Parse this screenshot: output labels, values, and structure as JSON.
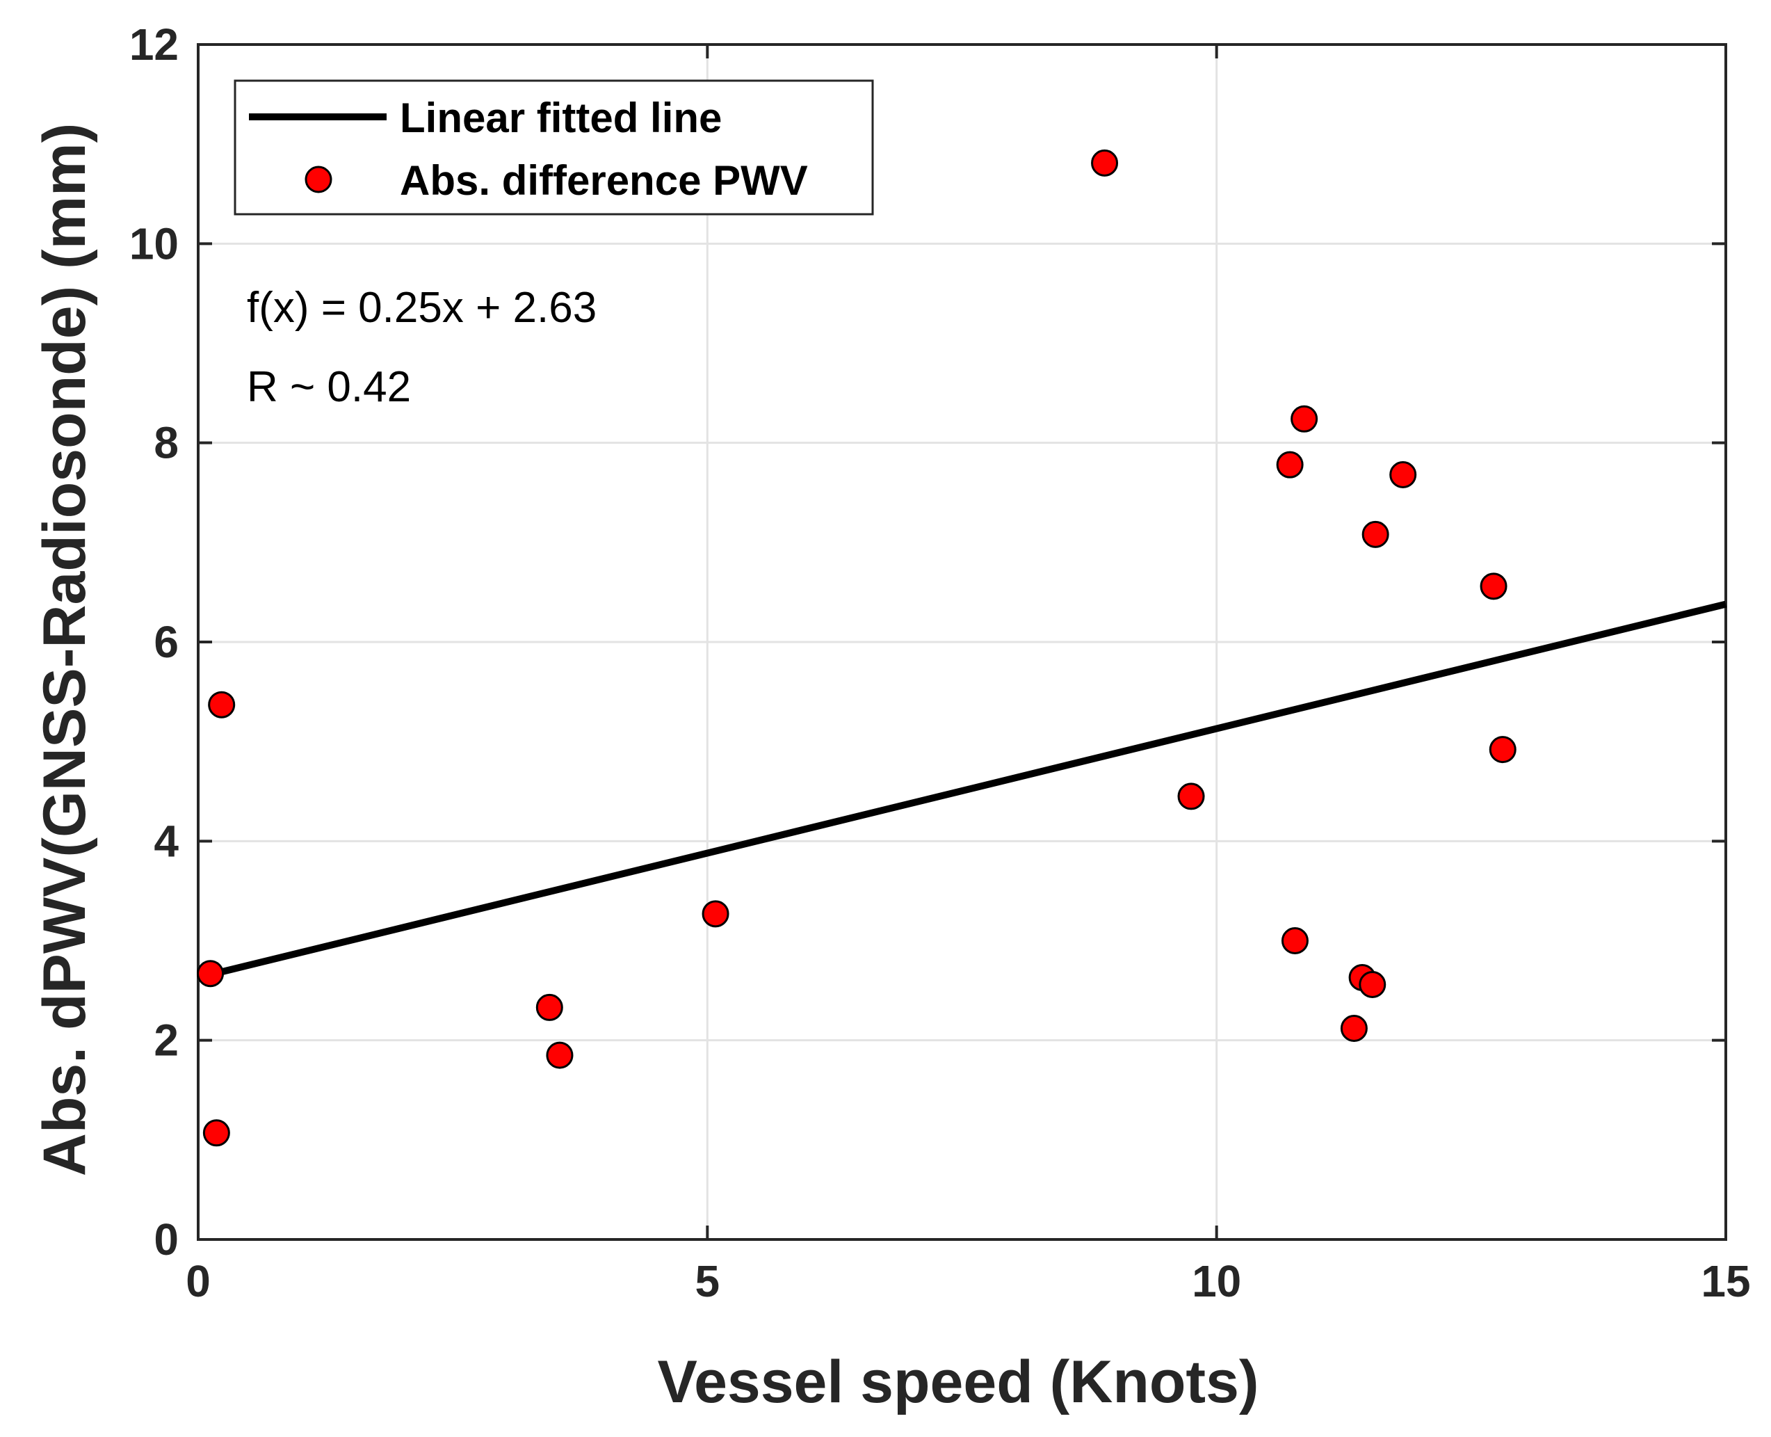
{
  "chart_data": {
    "type": "scatter",
    "title": "",
    "xlabel": "Vessel speed (Knots)",
    "ylabel": "Abs. dPWV(GNSS-Radiosonde) (mm)",
    "xlim": [
      0,
      15
    ],
    "ylim": [
      0,
      12
    ],
    "xticks": [
      0,
      5,
      10,
      15
    ],
    "yticks": [
      0,
      2,
      4,
      6,
      8,
      10,
      12
    ],
    "xtick_labels": [
      "0",
      "5",
      "10",
      "15"
    ],
    "ytick_labels": [
      "0",
      "2",
      "4",
      "6",
      "8",
      "10",
      "12"
    ],
    "grid": true,
    "legend": {
      "placement": "top-left",
      "entries": [
        "Linear fitted line",
        "Abs. difference PWV"
      ]
    },
    "annotations": [
      "f(x) = 0.25x + 2.63",
      "R ~ 0.42"
    ],
    "fit_line": {
      "name": "Linear fitted line",
      "slope": 0.25,
      "intercept": 2.63,
      "x_range": [
        0.1,
        15
      ]
    },
    "series": [
      {
        "name": "Abs. difference PWV",
        "color": "#ff0000",
        "points": [
          {
            "x": 0.12,
            "y": 2.67
          },
          {
            "x": 0.18,
            "y": 1.07
          },
          {
            "x": 0.23,
            "y": 5.37
          },
          {
            "x": 3.45,
            "y": 2.33
          },
          {
            "x": 3.55,
            "y": 1.85
          },
          {
            "x": 5.08,
            "y": 3.27
          },
          {
            "x": 8.9,
            "y": 10.81
          },
          {
            "x": 9.75,
            "y": 4.45
          },
          {
            "x": 10.72,
            "y": 7.78
          },
          {
            "x": 10.77,
            "y": 3.0
          },
          {
            "x": 10.86,
            "y": 8.24
          },
          {
            "x": 11.35,
            "y": 2.12
          },
          {
            "x": 11.43,
            "y": 2.63
          },
          {
            "x": 11.53,
            "y": 2.56
          },
          {
            "x": 11.56,
            "y": 7.08
          },
          {
            "x": 11.83,
            "y": 7.68
          },
          {
            "x": 12.72,
            "y": 6.56
          },
          {
            "x": 12.81,
            "y": 4.92
          }
        ]
      }
    ],
    "colors": {
      "marker_fill": "#ff0000",
      "marker_edge": "#000000",
      "line": "#000000",
      "grid": "#e3e3e3",
      "axis": "#262626"
    }
  }
}
